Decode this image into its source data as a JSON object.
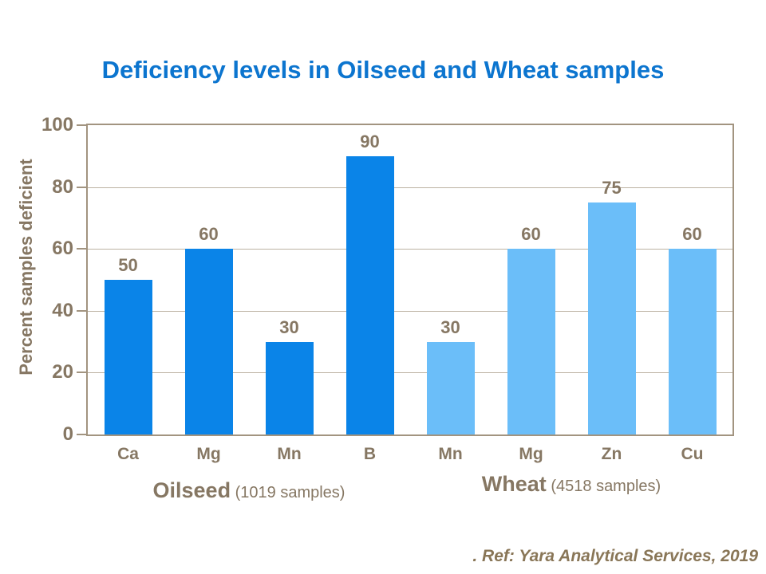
{
  "slide": {
    "title": "Deficiency levels in Oilseed and Wheat samples",
    "ref_text": ". Ref: Yara Analytical Services, 2019"
  },
  "chart_data": {
    "type": "bar",
    "title": "Deficiency levels in Oilseed and Wheat samples",
    "xlabel": "",
    "ylabel": "Percent samples deficient",
    "ylim": [
      0,
      100
    ],
    "yticks": [
      0,
      20,
      40,
      60,
      80,
      100
    ],
    "grid": true,
    "legend_position": "none",
    "value_labels_shown": true,
    "categories": [
      "Ca",
      "Mg",
      "Mn",
      "B",
      "Mn",
      "Mg",
      "Zn",
      "Cu"
    ],
    "values": [
      50,
      60,
      30,
      90,
      30,
      60,
      75,
      60
    ],
    "bar_group_index": [
      0,
      0,
      0,
      0,
      1,
      1,
      1,
      1
    ],
    "groups": [
      {
        "name": "Oilseed",
        "samples_note": "(1019 samples)",
        "bar_color": "#0A84E8"
      },
      {
        "name": "Wheat",
        "samples_note": "(4518 samples)",
        "bar_color": "#6BBEF9"
      }
    ],
    "colors": {
      "title_text": "#0C75CF",
      "axis_text": "#867763",
      "frame": "#A29480",
      "gridline": "#BCB2A2",
      "ref_text": "#897657"
    }
  }
}
